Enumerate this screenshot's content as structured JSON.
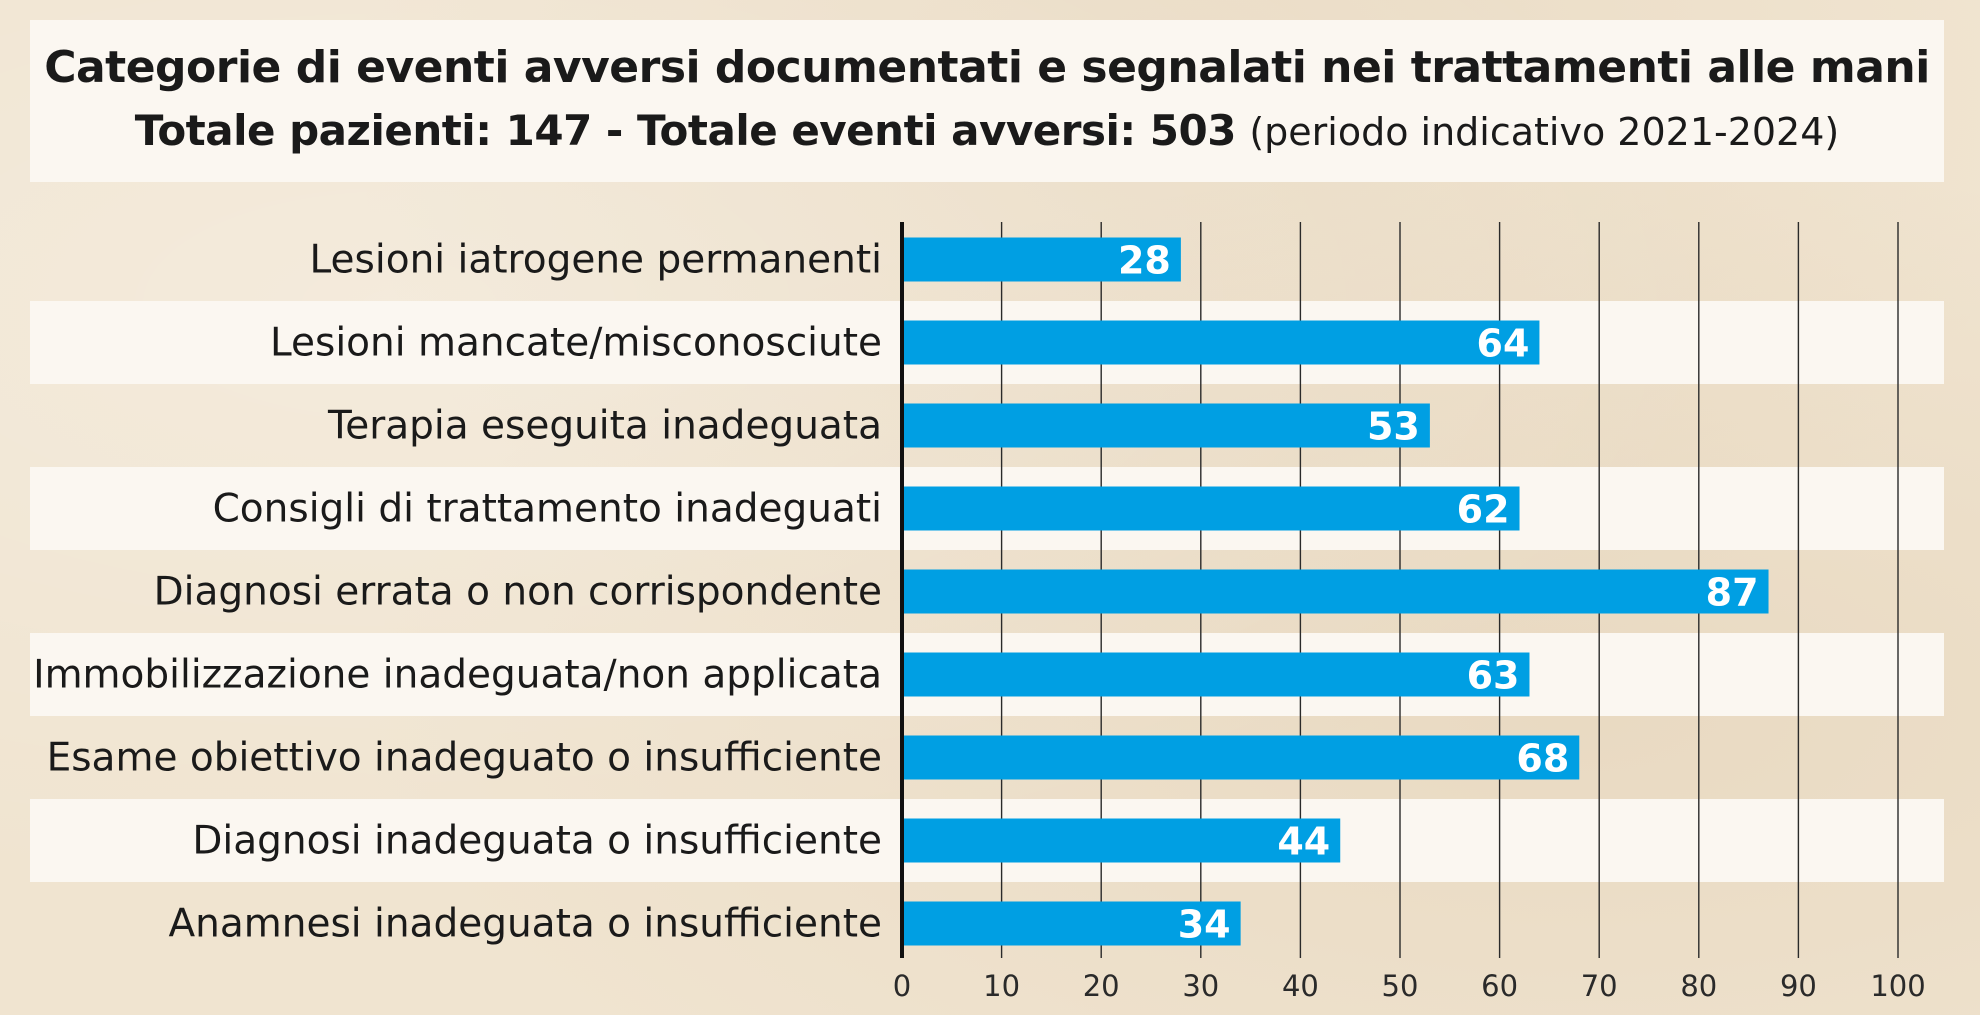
{
  "header": {
    "title": "Categorie di eventi avversi documentati e segnalati nei trattamenti alle mani",
    "subtitle_bold": "Totale pazienti: 147 - Totale eventi avversi: 503",
    "subtitle_light": "(periodo indicativo 2021-2024)"
  },
  "colors": {
    "bar": "#009fe3",
    "band": "#fbf7f1",
    "background": "#f0e4d0"
  },
  "chart_data": {
    "type": "bar",
    "orientation": "horizontal",
    "title": "Categorie di eventi avversi documentati e segnalati nei trattamenti alle mani",
    "categories": [
      "Lesioni iatrogene permanenti",
      "Lesioni mancate/misconosciute",
      "Terapia eseguita inadeguata",
      "Consigli di trattamento inadeguati",
      "Diagnosi errata o non corrispondente",
      "Immobilizzazione inadeguata/non applicata",
      "Esame obiettivo inadeguato o insufficiente",
      "Diagnosi inadeguata o insufficiente",
      "Anamnesi inadeguata o insufficiente"
    ],
    "values": [
      28,
      64,
      53,
      62,
      87,
      63,
      68,
      44,
      34
    ],
    "xlim": [
      0,
      100
    ],
    "ticks": [
      "0",
      "10",
      "20",
      "30",
      "40",
      "50",
      "60",
      "70",
      "80",
      "90",
      "100"
    ],
    "grid": "vertical",
    "data_labels": true
  }
}
